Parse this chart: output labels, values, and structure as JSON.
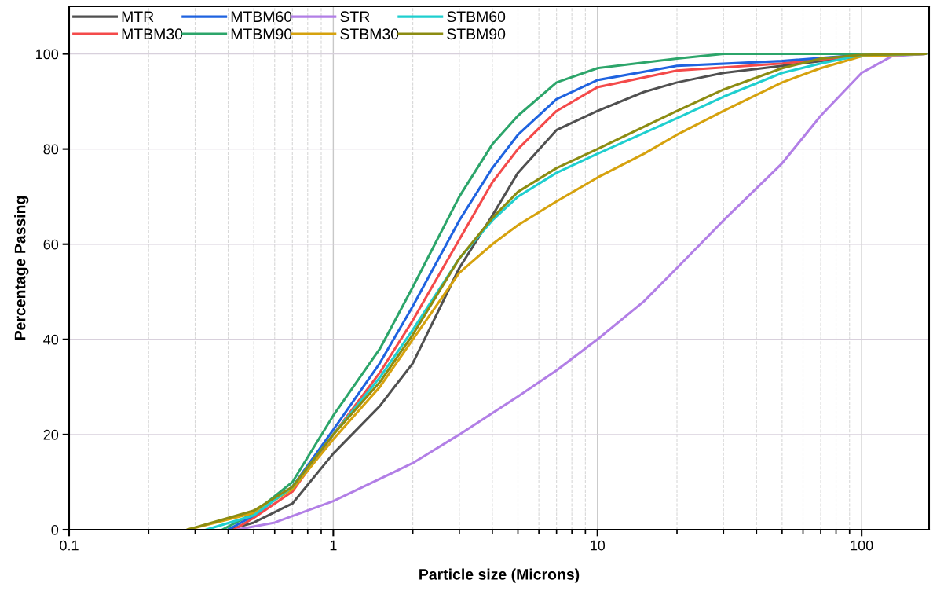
{
  "chart_data": {
    "type": "line",
    "xlabel": "Particle size (Microns)",
    "ylabel": "Percentage Passing",
    "log": "x",
    "grid": true,
    "legend": "top left",
    "marker": "none",
    "line_style": "solid",
    "xlim": [
      0.1,
      180
    ],
    "xticks": [
      0.1,
      1,
      10,
      100
    ],
    "ylim": [
      0,
      110
    ],
    "yticks": [
      0,
      20,
      40,
      60,
      80,
      100
    ],
    "series": [
      {
        "name": "MTR",
        "color": "#505050",
        "x": [
          0.4,
          0.5,
          0.7,
          1,
          1.5,
          2,
          3,
          4,
          5,
          7,
          10,
          15,
          20,
          30,
          50,
          100,
          175
        ],
        "values": [
          0,
          1.5,
          5.5,
          16,
          26,
          35,
          55,
          66,
          75,
          84,
          88,
          92,
          94,
          96,
          97.5,
          99.5,
          100
        ]
      },
      {
        "name": "MTBM30",
        "color": "#f44a4a",
        "x": [
          0.42,
          0.5,
          0.7,
          1,
          1.5,
          2,
          3,
          4,
          5,
          7,
          10,
          20,
          50,
          100,
          175
        ],
        "values": [
          0,
          2.5,
          8,
          20,
          33,
          44,
          61,
          73,
          80,
          88,
          93,
          96.5,
          98,
          99.7,
          100
        ]
      },
      {
        "name": "MTBM60",
        "color": "#1f63e0",
        "x": [
          0.4,
          0.5,
          0.7,
          1,
          1.5,
          2,
          3,
          4,
          5,
          7,
          10,
          20,
          50,
          100,
          175
        ],
        "values": [
          0,
          3,
          9,
          21,
          35,
          47,
          65,
          76,
          83,
          90.5,
          94.5,
          97.5,
          98.5,
          99.8,
          100
        ]
      },
      {
        "name": "MTBM90",
        "color": "#2ca56a",
        "x": [
          0.38,
          0.5,
          0.7,
          1,
          1.5,
          2,
          3,
          4,
          5,
          7,
          10,
          20,
          30,
          175
        ],
        "values": [
          0,
          3.5,
          10,
          24,
          38,
          51,
          70,
          81,
          87,
          94,
          97,
          99,
          100,
          100
        ]
      },
      {
        "name": "STR",
        "color": "#b27fe6",
        "x": [
          0.43,
          0.6,
          1,
          2,
          3,
          5,
          7,
          10,
          15,
          20,
          30,
          50,
          70,
          100,
          130,
          175
        ],
        "values": [
          0,
          1.5,
          6,
          14,
          20,
          28,
          33.5,
          40,
          48,
          55,
          65,
          77,
          87,
          96,
          99.5,
          100
        ]
      },
      {
        "name": "STBM30",
        "color": "#d6a20e",
        "x": [
          0.28,
          0.5,
          0.7,
          1,
          1.5,
          2,
          3,
          4,
          5,
          7,
          10,
          15,
          20,
          30,
          50,
          70,
          100,
          175
        ],
        "values": [
          0,
          3.5,
          8.5,
          19,
          30,
          40,
          54,
          60,
          64,
          69,
          74,
          79,
          83,
          88,
          94,
          97,
          99.5,
          100
        ]
      },
      {
        "name": "STBM60",
        "color": "#1fcfcf",
        "x": [
          0.33,
          0.5,
          0.7,
          1,
          1.5,
          2,
          3,
          4,
          5,
          7,
          10,
          20,
          30,
          50,
          70,
          100,
          175
        ],
        "values": [
          0,
          3,
          9,
          20,
          32,
          42,
          57,
          65,
          70,
          75,
          79,
          86.5,
          91,
          96,
          98,
          99.8,
          100
        ]
      },
      {
        "name": "STBM90",
        "color": "#8c8c12",
        "x": [
          0.28,
          0.5,
          0.7,
          1,
          1.5,
          2,
          3,
          4,
          5,
          7,
          10,
          20,
          30,
          50,
          70,
          100,
          175
        ],
        "values": [
          0,
          4,
          9,
          20,
          31,
          41,
          57,
          65.5,
          71,
          76,
          80,
          88,
          92.5,
          97,
          99,
          99.8,
          100
        ]
      }
    ]
  }
}
